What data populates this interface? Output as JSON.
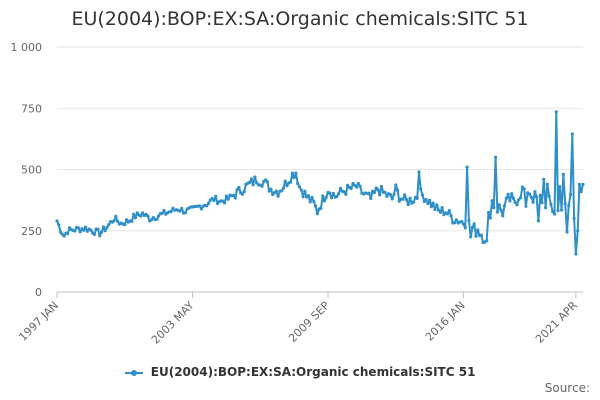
{
  "chart_data": {
    "type": "line",
    "title": "EU(2004):BOP:EX:SA:Organic chemicals:SITC 51",
    "xlabel": "",
    "ylabel": "",
    "ylim": [
      0,
      1000
    ],
    "yticks": [
      0,
      250,
      500,
      750,
      1000
    ],
    "ytick_labels": [
      "0",
      "250",
      "500",
      "750",
      "1 000"
    ],
    "xticks": [
      {
        "label": "1997 JAN",
        "index": 0
      },
      {
        "label": "2003 MAY",
        "index": 76
      },
      {
        "label": "2009 SEP",
        "index": 152
      },
      {
        "label": "2016 JAN",
        "index": 228
      },
      {
        "label": "2021 APR",
        "index": 291
      }
    ],
    "x_range": [
      "1997-01",
      "2021-04"
    ],
    "anchors": [
      [
        0,
        290
      ],
      [
        2,
        255
      ],
      [
        4,
        230
      ],
      [
        6,
        250
      ],
      [
        10,
        255
      ],
      [
        16,
        260
      ],
      [
        20,
        250
      ],
      [
        24,
        240
      ],
      [
        28,
        265
      ],
      [
        32,
        300
      ],
      [
        36,
        280
      ],
      [
        40,
        290
      ],
      [
        44,
        310
      ],
      [
        48,
        320
      ],
      [
        52,
        300
      ],
      [
        56,
        310
      ],
      [
        60,
        320
      ],
      [
        64,
        330
      ],
      [
        68,
        340
      ],
      [
        72,
        330
      ],
      [
        76,
        335
      ],
      [
        80,
        350
      ],
      [
        84,
        360
      ],
      [
        88,
        380
      ],
      [
        92,
        370
      ],
      [
        96,
        380
      ],
      [
        100,
        400
      ],
      [
        104,
        420
      ],
      [
        108,
        440
      ],
      [
        112,
        460
      ],
      [
        116,
        450
      ],
      [
        120,
        420
      ],
      [
        124,
        410
      ],
      [
        128,
        440
      ],
      [
        132,
        480
      ],
      [
        134,
        490
      ],
      [
        136,
        430
      ],
      [
        140,
        390
      ],
      [
        144,
        360
      ],
      [
        146,
        330
      ],
      [
        150,
        390
      ],
      [
        152,
        420
      ],
      [
        156,
        390
      ],
      [
        160,
        410
      ],
      [
        164,
        420
      ],
      [
        168,
        430
      ],
      [
        172,
        400
      ],
      [
        176,
        380
      ],
      [
        180,
        420
      ],
      [
        184,
        400
      ],
      [
        188,
        380
      ],
      [
        190,
        420
      ],
      [
        192,
        390
      ],
      [
        196,
        370
      ],
      [
        200,
        380
      ],
      [
        204,
        400
      ],
      [
        206,
        390
      ],
      [
        210,
        360
      ],
      [
        214,
        330
      ],
      [
        218,
        330
      ],
      [
        222,
        300
      ],
      [
        226,
        290
      ],
      [
        230,
        280
      ],
      [
        232,
        270
      ],
      [
        234,
        250
      ],
      [
        236,
        260
      ],
      [
        238,
        240
      ],
      [
        240,
        230
      ],
      [
        242,
        300
      ],
      [
        244,
        370
      ],
      [
        246,
        350
      ],
      [
        250,
        330
      ],
      [
        254,
        380
      ],
      [
        256,
        360
      ],
      [
        260,
        410
      ],
      [
        264,
        420
      ],
      [
        268,
        380
      ],
      [
        272,
        380
      ],
      [
        276,
        360
      ],
      [
        280,
        320
      ],
      [
        284,
        350
      ],
      [
        286,
        310
      ],
      [
        288,
        390
      ],
      [
        290,
        400
      ],
      [
        291,
        410
      ]
    ],
    "spikes": [
      [
        203,
        490
      ],
      [
        230,
        510
      ],
      [
        232,
        225
      ],
      [
        241,
        210
      ],
      [
        246,
        550
      ],
      [
        263,
        350
      ],
      [
        270,
        290
      ],
      [
        273,
        460
      ],
      [
        275,
        440
      ],
      [
        280,
        735
      ],
      [
        282,
        430
      ],
      [
        284,
        480
      ],
      [
        285,
        360
      ],
      [
        286,
        245
      ],
      [
        290,
        300
      ],
      [
        289,
        645
      ],
      [
        291,
        155
      ],
      [
        292,
        250
      ],
      [
        294,
        410
      ]
    ],
    "series": [
      {
        "name": "EU(2004):BOP:EX:SA:Organic chemicals:SITC 51",
        "color": "#2f8fc8"
      }
    ],
    "legend": "bottom-center"
  },
  "footer": {
    "source_label": "Source:"
  }
}
